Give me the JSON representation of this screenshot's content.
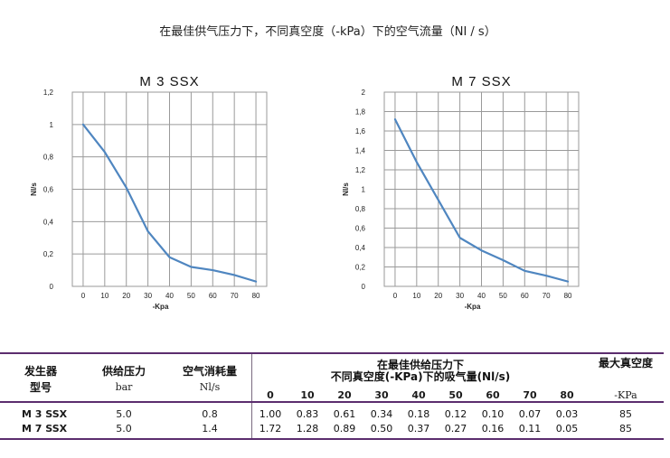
{
  "page_title": "在最佳供气压力下，不同真空度（-kPa）下的空气流量（NI / s）",
  "chart_data": [
    {
      "type": "line",
      "title": "M 3 SSX",
      "xlabel": "-Kpa",
      "ylabel": "Nl/s",
      "x": [
        0,
        10,
        20,
        30,
        40,
        50,
        60,
        70,
        80
      ],
      "x_ticks": [
        "0",
        "10",
        "20",
        "30",
        "40",
        "50",
        "60",
        "70",
        "80"
      ],
      "y_ticks": [
        "0",
        "0,2",
        "0,4",
        "0,6",
        "0,8",
        "1",
        "1,2"
      ],
      "xlim": [
        -5,
        85
      ],
      "ylim": [
        0,
        1.2
      ],
      "grid": true,
      "series": [
        {
          "values": [
            1.0,
            0.83,
            0.61,
            0.34,
            0.18,
            0.12,
            0.1,
            0.07,
            0.03
          ]
        }
      ],
      "color": "#4f86c0"
    },
    {
      "type": "line",
      "title": "M 7 SSX",
      "xlabel": "-Kpa",
      "ylabel": "Nl/s",
      "x": [
        0,
        10,
        20,
        30,
        40,
        50,
        60,
        70,
        80
      ],
      "x_ticks": [
        "0",
        "10",
        "20",
        "30",
        "40",
        "50",
        "60",
        "70",
        "80"
      ],
      "y_ticks": [
        "0",
        "0,2",
        "0,4",
        "0,6",
        "0,8",
        "1",
        "1,2",
        "1,4",
        "1,6",
        "1,8",
        "2"
      ],
      "xlim": [
        -5,
        85
      ],
      "ylim": [
        0,
        2
      ],
      "grid": true,
      "series": [
        {
          "values": [
            1.72,
            1.28,
            0.89,
            0.5,
            0.37,
            0.27,
            0.16,
            0.11,
            0.05
          ]
        }
      ],
      "color": "#4f86c0"
    }
  ],
  "table": {
    "col_generator": [
      "发生器",
      "型号"
    ],
    "col_pressure": "供给压力",
    "col_pressure_unit": "bar",
    "col_consumption": "空气消耗量",
    "col_consumption_unit": "Nl/s",
    "col_flow": [
      "在最佳供给压力下",
      "不同真空度(-KPa)下的吸气量(Nl/s)"
    ],
    "col_max_vacuum": "最大真空度",
    "col_max_vacuum_unit": "-KPa",
    "pressures": [
      "0",
      "10",
      "20",
      "30",
      "40",
      "50",
      "60",
      "70",
      "80"
    ],
    "rows": [
      {
        "model": "M 3 SSX",
        "pressure": "5.0",
        "consumption": "0.8",
        "flows": [
          "1.00",
          "0.83",
          "0.61",
          "0.34",
          "0.18",
          "0.12",
          "0.10",
          "0.07",
          "0.03"
        ],
        "max_vacuum": "85"
      },
      {
        "model": "M 7 SSX",
        "pressure": "5.0",
        "consumption": "1.4",
        "flows": [
          "1.72",
          "1.28",
          "0.89",
          "0.50",
          "0.37",
          "0.27",
          "0.16",
          "0.11",
          "0.05"
        ],
        "max_vacuum": "85"
      }
    ]
  }
}
